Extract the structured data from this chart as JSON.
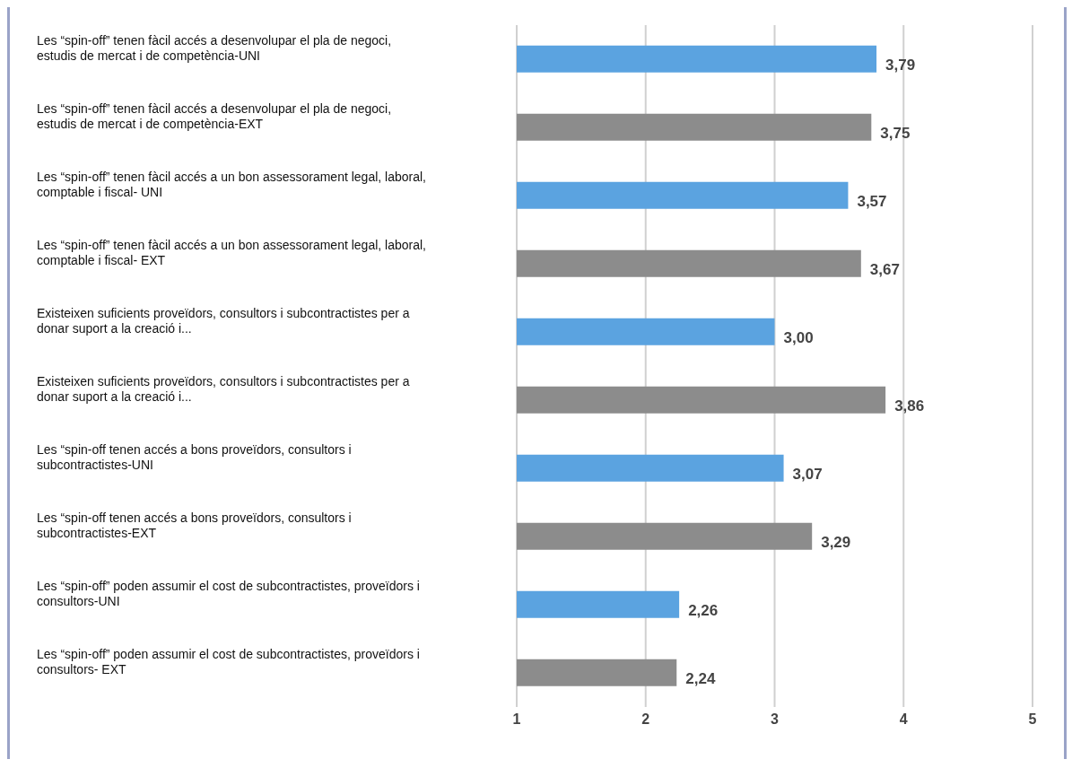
{
  "chart_data": {
    "type": "bar",
    "orientation": "horizontal",
    "categories": [
      "Les “spin-off” tenen fàcil accés a desenvolupar el pla de negoci, estudis de mercat i de competència-UNI",
      "Les “spin-off” tenen fàcil accés a desenvolupar el pla de negoci, estudis de mercat i de competència-EXT",
      "Les “spin-off” tenen fàcil accés a un bon assessorament legal, laboral, comptable i fiscal- UNI",
      "Les “spin-off” tenen fàcil accés a un bon assessorament legal, laboral, comptable i fiscal- EXT",
      "Existeixen suficients proveïdors, consultors i subcontractistes per a donar suport a la creació i...",
      "Existeixen suficients proveïdors, consultors i subcontractistes per a donar suport a la creació i...",
      "Les “spin-off tenen accés a bons proveïdors, consultors i subcontractistes-UNI",
      "Les “spin-off tenen accés a bons proveïdors, consultors i subcontractistes-EXT",
      "Les “spin-off” poden assumir el cost de subcontractistes, proveïdors i consultors-UNI",
      "Les “spin-off” poden assumir el cost de subcontractistes, proveïdors i consultors- EXT"
    ],
    "values": [
      3.79,
      3.75,
      3.57,
      3.67,
      3.0,
      3.86,
      3.07,
      3.29,
      2.26,
      2.24
    ],
    "colors": [
      "#5ba3e0",
      "#8c8c8c",
      "#5ba3e0",
      "#8c8c8c",
      "#5ba3e0",
      "#8c8c8c",
      "#5ba3e0",
      "#8c8c8c",
      "#5ba3e0",
      "#8c8c8c"
    ],
    "value_labels": [
      "3,79",
      "3,75",
      "3,57",
      "3,67",
      "3,00",
      "3,86",
      "3,07",
      "3,29",
      "2,26",
      "2,24"
    ],
    "xlim": [
      1,
      5
    ],
    "xticks": [
      1,
      2,
      3,
      4,
      5
    ],
    "grid": "x"
  }
}
